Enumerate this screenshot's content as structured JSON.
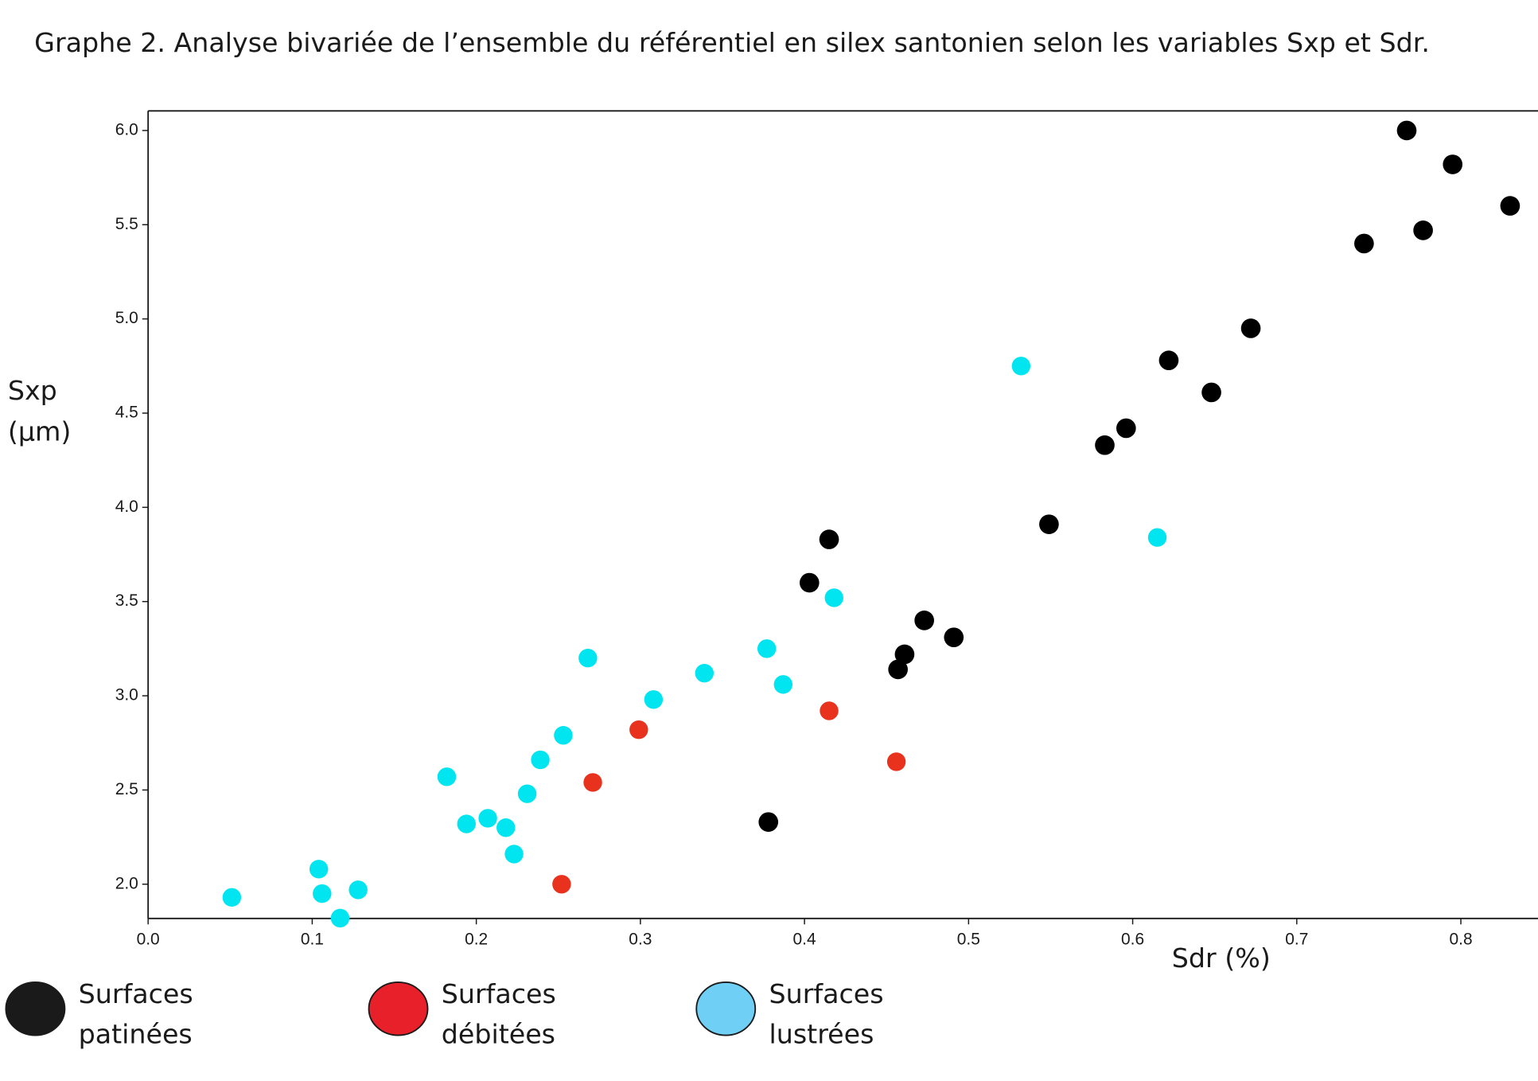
{
  "chart_data": {
    "type": "scatter",
    "title": "Graphe 2. Analyse bivariée de l’ensemble du référentiel en silex santonien selon les variables Sxp et Sdr.",
    "x_label": "Sdr (%)",
    "y_label": "Sxp (µm)",
    "xlim": [
      0,
      0.847
    ],
    "ylim": [
      1.818,
      6.104
    ],
    "xticks": [
      {
        "value": 0,
        "label": "0.0"
      },
      0.1,
      0.2,
      0.3,
      0.4,
      0.5,
      0.6,
      0.7,
      0.8
    ],
    "yticks": [
      {
        "value": 2,
        "label": "2.0"
      },
      2.5,
      {
        "value": 3,
        "label": "3.0"
      },
      3.5,
      {
        "value": 4,
        "label": "4.0"
      },
      4.5,
      {
        "value": 5,
        "label": "5.0"
      },
      5.5,
      {
        "value": 6,
        "label": "6.0"
      }
    ],
    "series": [
      {
        "name": "Surfaces patinées",
        "color": "#000000",
        "legend_color": "#1a1a1a",
        "x": [
          0.767,
          0.795,
          0.83,
          0.741,
          0.777,
          0.672,
          0.622,
          0.648,
          0.596,
          0.583,
          0.549,
          0.415,
          0.403,
          0.473,
          0.491,
          0.461,
          0.457,
          0.378
        ],
        "values": [
          6.0,
          5.82,
          5.6,
          5.4,
          5.47,
          4.95,
          4.78,
          4.61,
          4.42,
          4.33,
          3.91,
          3.83,
          3.6,
          3.4,
          3.31,
          3.22,
          3.14,
          2.33
        ]
      },
      {
        "name": "Surfaces débitées",
        "color": "#e8321e",
        "legend_color": "#e8202a",
        "x": [
          0.252,
          0.271,
          0.299,
          0.415,
          0.456
        ],
        "values": [
          2.0,
          2.54,
          2.82,
          2.92,
          2.65
        ]
      },
      {
        "name": "Surfaces lustrées",
        "color": "#00e5ef",
        "legend_color": "#6fcff5",
        "x": [
          0.532,
          0.615,
          0.418,
          0.268,
          0.377,
          0.339,
          0.387,
          0.308,
          0.253,
          0.239,
          0.182,
          0.231,
          0.207,
          0.194,
          0.218,
          0.223,
          0.104,
          0.128,
          0.106,
          0.051,
          0.117
        ],
        "values": [
          4.75,
          3.84,
          3.52,
          3.2,
          3.25,
          3.12,
          3.06,
          2.98,
          2.79,
          2.66,
          2.57,
          2.48,
          2.35,
          2.32,
          2.3,
          2.16,
          2.08,
          1.97,
          1.95,
          1.93,
          1.82
        ]
      }
    ]
  }
}
